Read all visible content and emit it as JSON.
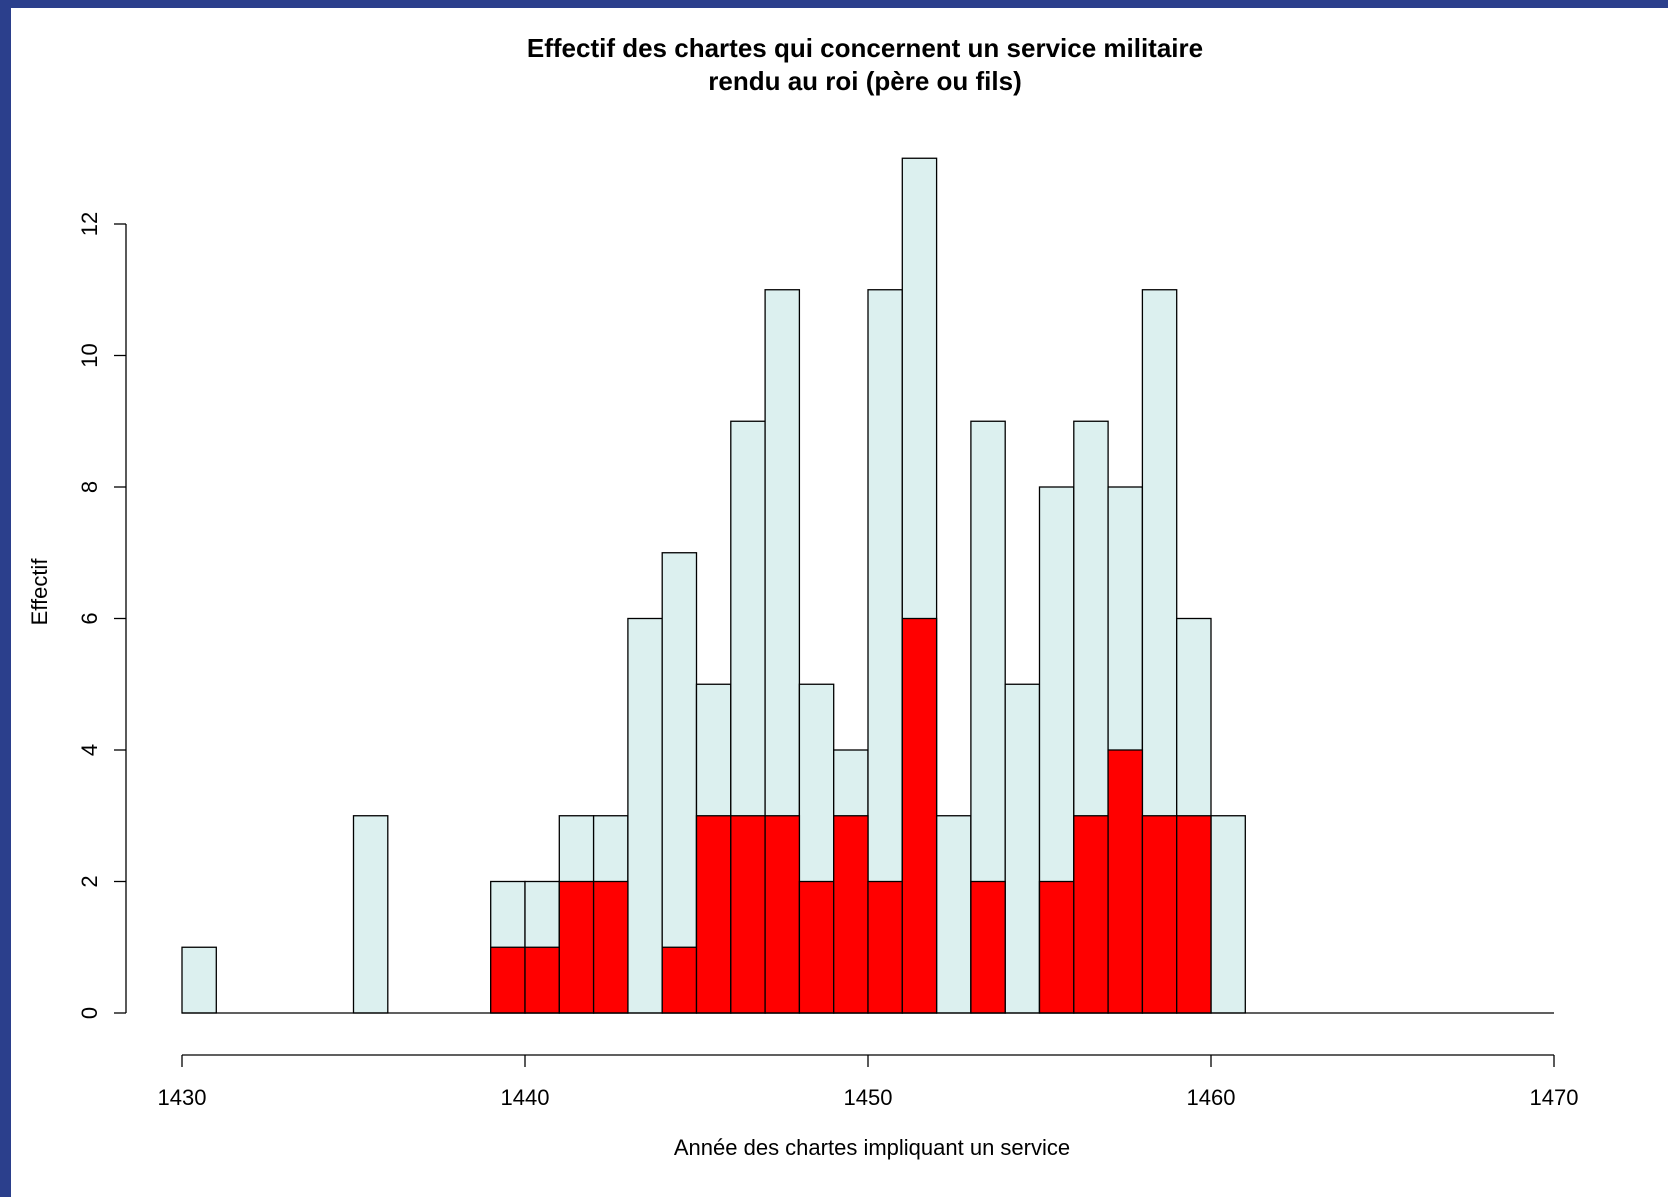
{
  "chart_data": {
    "type": "bar",
    "title": "Effectif des chartes qui concernent un service militaire",
    "subtitle": "rendu au roi (père ou fils)",
    "xlabel": "Année des chartes impliquant un service",
    "ylabel": "Effectif",
    "xlim": [
      1430,
      1470
    ],
    "ylim": [
      0,
      13
    ],
    "x_ticks": [
      1430,
      1440,
      1450,
      1460,
      1470
    ],
    "y_ticks": [
      0,
      2,
      4,
      6,
      8,
      10,
      12
    ],
    "bin_width": 1,
    "bin_starts": [
      1430,
      1431,
      1432,
      1433,
      1434,
      1435,
      1436,
      1437,
      1438,
      1439,
      1440,
      1441,
      1442,
      1443,
      1444,
      1445,
      1446,
      1447,
      1448,
      1449,
      1450,
      1451,
      1452,
      1453,
      1454,
      1455,
      1456,
      1457,
      1458,
      1459,
      1460,
      1461,
      1462,
      1463,
      1464,
      1465,
      1466,
      1467,
      1468,
      1469
    ],
    "series": [
      {
        "color": "#dcf0ef",
        "values": [
          1,
          0,
          0,
          0,
          0,
          3,
          0,
          0,
          0,
          2,
          2,
          3,
          3,
          6,
          7,
          5,
          9,
          11,
          5,
          4,
          11,
          13,
          3,
          9,
          5,
          8,
          9,
          8,
          11,
          6,
          3,
          0,
          0,
          0,
          0,
          0,
          0,
          0,
          0,
          0
        ]
      },
      {
        "color": "#ff0000",
        "values": [
          0,
          0,
          0,
          0,
          0,
          0,
          0,
          0,
          0,
          1,
          1,
          2,
          2,
          0,
          1,
          3,
          3,
          3,
          2,
          3,
          2,
          6,
          0,
          2,
          0,
          2,
          3,
          4,
          3,
          3,
          0,
          0,
          0,
          0,
          0,
          0,
          0,
          0,
          0,
          0
        ]
      }
    ],
    "grid": false,
    "legend": "none"
  }
}
